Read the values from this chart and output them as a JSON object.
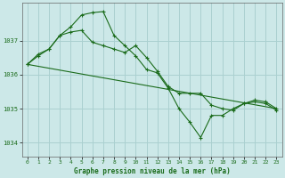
{
  "title": "Graphe pression niveau de la mer (hPa)",
  "bg_color": "#cce8e8",
  "grid_color": "#aad0d0",
  "line_color": "#1a6b1a",
  "xlim": [
    -0.5,
    23.5
  ],
  "ylim": [
    1033.6,
    1038.1
  ],
  "yticks": [
    1034,
    1035,
    1036,
    1037
  ],
  "xticks": [
    0,
    1,
    2,
    3,
    4,
    5,
    6,
    7,
    8,
    9,
    10,
    11,
    12,
    13,
    14,
    15,
    16,
    17,
    18,
    19,
    20,
    21,
    22,
    23
  ],
  "series1": [
    [
      0,
      1036.3
    ],
    [
      1,
      1036.55
    ],
    [
      2,
      1036.75
    ],
    [
      3,
      1037.15
    ],
    [
      4,
      1037.4
    ],
    [
      5,
      1037.75
    ],
    [
      6,
      1037.82
    ],
    [
      7,
      1037.85
    ],
    [
      8,
      1037.15
    ],
    [
      9,
      1036.85
    ],
    [
      10,
      1036.55
    ],
    [
      11,
      1036.15
    ],
    [
      12,
      1036.05
    ],
    [
      13,
      1035.6
    ],
    [
      14,
      1035.0
    ],
    [
      15,
      1034.6
    ],
    [
      16,
      1034.15
    ],
    [
      17,
      1034.8
    ],
    [
      18,
      1034.8
    ],
    [
      19,
      1035.0
    ],
    [
      20,
      1035.15
    ],
    [
      21,
      1035.2
    ],
    [
      22,
      1035.15
    ],
    [
      23,
      1034.95
    ]
  ],
  "series2": [
    [
      0,
      1036.3
    ],
    [
      1,
      1036.6
    ],
    [
      2,
      1036.75
    ],
    [
      3,
      1037.15
    ],
    [
      4,
      1037.25
    ],
    [
      5,
      1037.3
    ],
    [
      6,
      1036.95
    ],
    [
      7,
      1036.85
    ],
    [
      8,
      1036.75
    ],
    [
      9,
      1036.65
    ],
    [
      10,
      1036.85
    ],
    [
      11,
      1036.5
    ],
    [
      12,
      1036.1
    ],
    [
      13,
      1035.65
    ],
    [
      14,
      1035.45
    ],
    [
      15,
      1035.45
    ],
    [
      16,
      1035.45
    ],
    [
      17,
      1035.1
    ],
    [
      18,
      1035.0
    ],
    [
      19,
      1034.95
    ],
    [
      20,
      1035.15
    ],
    [
      21,
      1035.25
    ],
    [
      22,
      1035.2
    ],
    [
      23,
      1035.0
    ]
  ],
  "series3_x": [
    0,
    23
  ],
  "series3_y": [
    1036.3,
    1035.0
  ]
}
